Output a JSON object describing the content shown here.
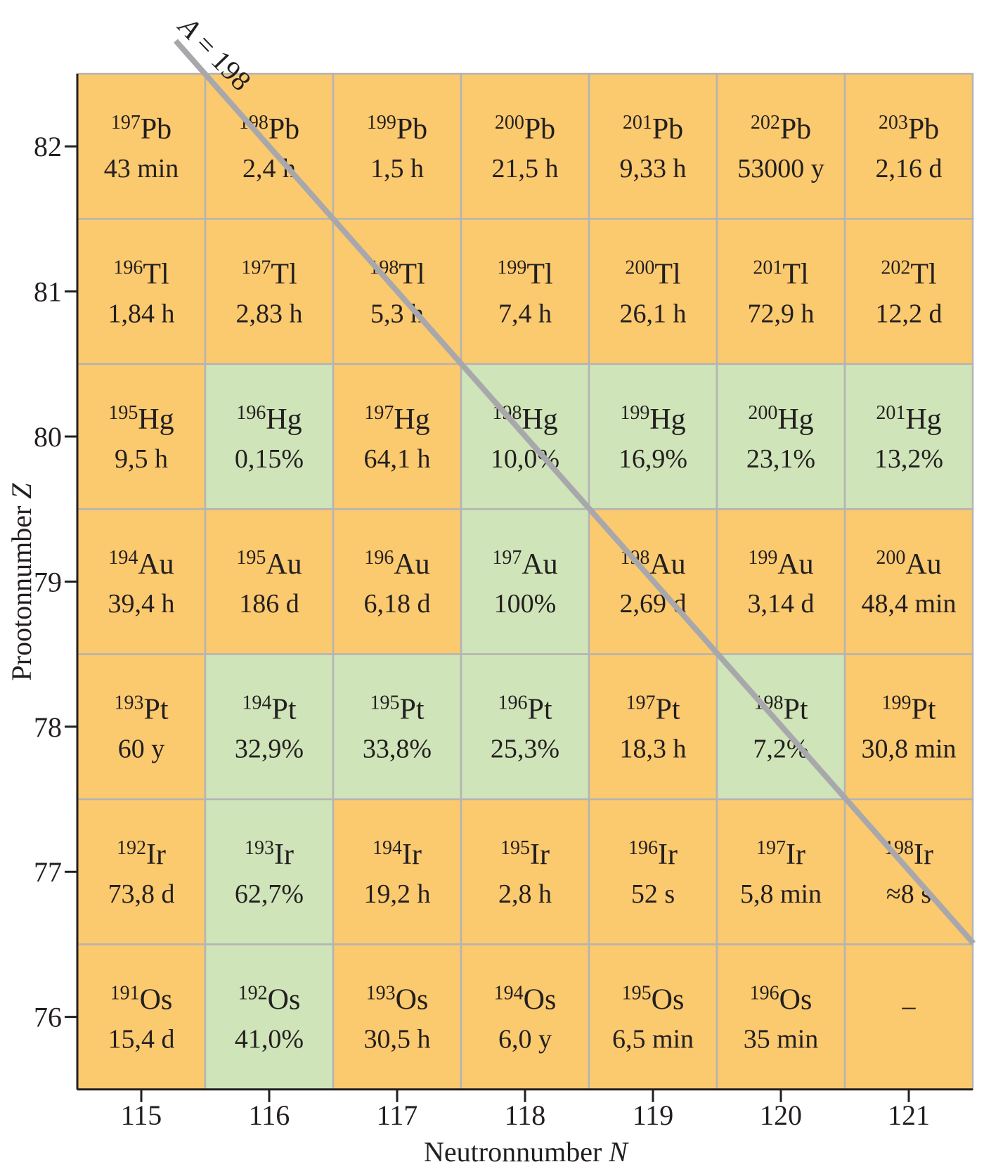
{
  "colors": {
    "unstable": "#FBC96E",
    "stable": "#CFE4B8",
    "grid": "#B4B4B4",
    "diagonal": "#A8A8AC",
    "axis": "#231f20"
  },
  "diagonal_label": {
    "var": "A",
    "text": " = 198"
  },
  "x_axis": {
    "title": "Neutronnumber ",
    "var": "N",
    "ticks": [
      "115",
      "116",
      "117",
      "118",
      "119",
      "120",
      "121"
    ]
  },
  "y_axis": {
    "title": "Protonnumber ",
    "title_full": "Prootonnumber ",
    "var": "Z",
    "ticks": [
      "82",
      "81",
      "80",
      "79",
      "78",
      "77",
      "76"
    ]
  },
  "rows": [
    [
      {
        "a": "197",
        "el": "Pb",
        "v": "43 min",
        "s": false
      },
      {
        "a": "198",
        "el": "Pb",
        "v": "2,4 h",
        "s": false
      },
      {
        "a": "199",
        "el": "Pb",
        "v": "1,5 h",
        "s": false
      },
      {
        "a": "200",
        "el": "Pb",
        "v": "21,5 h",
        "s": false
      },
      {
        "a": "201",
        "el": "Pb",
        "v": "9,33 h",
        "s": false
      },
      {
        "a": "202",
        "el": "Pb",
        "v": "53000 y",
        "s": false
      },
      {
        "a": "203",
        "el": "Pb",
        "v": "2,16 d",
        "s": false
      }
    ],
    [
      {
        "a": "196",
        "el": "Tl",
        "v": "1,84 h",
        "s": false
      },
      {
        "a": "197",
        "el": "Tl",
        "v": "2,83 h",
        "s": false
      },
      {
        "a": "198",
        "el": "Tl",
        "v": "5,3 h",
        "s": false
      },
      {
        "a": "199",
        "el": "Tl",
        "v": "7,4 h",
        "s": false
      },
      {
        "a": "200",
        "el": "Tl",
        "v": "26,1 h",
        "s": false
      },
      {
        "a": "201",
        "el": "Tl",
        "v": "72,9 h",
        "s": false
      },
      {
        "a": "202",
        "el": "Tl",
        "v": "12,2 d",
        "s": false
      }
    ],
    [
      {
        "a": "195",
        "el": "Hg",
        "v": "9,5 h",
        "s": false
      },
      {
        "a": "196",
        "el": "Hg",
        "v": "0,15%",
        "s": true
      },
      {
        "a": "197",
        "el": "Hg",
        "v": "64,1 h",
        "s": false
      },
      {
        "a": "198",
        "el": "Hg",
        "v": "10,0%",
        "s": true
      },
      {
        "a": "199",
        "el": "Hg",
        "v": "16,9%",
        "s": true
      },
      {
        "a": "200",
        "el": "Hg",
        "v": "23,1%",
        "s": true
      },
      {
        "a": "201",
        "el": "Hg",
        "v": "13,2%",
        "s": true
      }
    ],
    [
      {
        "a": "194",
        "el": "Au",
        "v": "39,4 h",
        "s": false
      },
      {
        "a": "195",
        "el": "Au",
        "v": "186 d",
        "s": false
      },
      {
        "a": "196",
        "el": "Au",
        "v": "6,18 d",
        "s": false
      },
      {
        "a": "197",
        "el": "Au",
        "v": "100%",
        "s": true
      },
      {
        "a": "198",
        "el": "Au",
        "v": "2,69 d",
        "s": false
      },
      {
        "a": "199",
        "el": "Au",
        "v": "3,14 d",
        "s": false
      },
      {
        "a": "200",
        "el": "Au",
        "v": "48,4 min",
        "s": false
      }
    ],
    [
      {
        "a": "193",
        "el": "Pt",
        "v": "60 y",
        "s": false
      },
      {
        "a": "194",
        "el": "Pt",
        "v": "32,9%",
        "s": true
      },
      {
        "a": "195",
        "el": "Pt",
        "v": "33,8%",
        "s": true
      },
      {
        "a": "196",
        "el": "Pt",
        "v": "25,3%",
        "s": true
      },
      {
        "a": "197",
        "el": "Pt",
        "v": "18,3 h",
        "s": false
      },
      {
        "a": "198",
        "el": "Pt",
        "v": "7,2%",
        "s": true
      },
      {
        "a": "199",
        "el": "Pt",
        "v": "30,8 min",
        "s": false
      }
    ],
    [
      {
        "a": "192",
        "el": "Ir",
        "v": "73,8 d",
        "s": false
      },
      {
        "a": "193",
        "el": "Ir",
        "v": "62,7%",
        "s": true
      },
      {
        "a": "194",
        "el": "Ir",
        "v": "19,2 h",
        "s": false
      },
      {
        "a": "195",
        "el": "Ir",
        "v": "2,8 h",
        "s": false
      },
      {
        "a": "196",
        "el": "Ir",
        "v": "52 s",
        "s": false
      },
      {
        "a": "197",
        "el": "Ir",
        "v": "5,8 min",
        "s": false
      },
      {
        "a": "198",
        "el": "Ir",
        "v": "≈8 s",
        "s": false
      }
    ],
    [
      {
        "a": "191",
        "el": "Os",
        "v": "15,4 d",
        "s": false
      },
      {
        "a": "192",
        "el": "Os",
        "v": "41,0%",
        "s": true
      },
      {
        "a": "193",
        "el": "Os",
        "v": "30,5 h",
        "s": false
      },
      {
        "a": "194",
        "el": "Os",
        "v": "6,0 y",
        "s": false
      },
      {
        "a": "195",
        "el": "Os",
        "v": "6,5 min",
        "s": false
      },
      {
        "a": "196",
        "el": "Os",
        "v": "35 min",
        "s": false
      },
      {
        "a": "",
        "el": "",
        "v": "–",
        "s": false
      }
    ]
  ]
}
